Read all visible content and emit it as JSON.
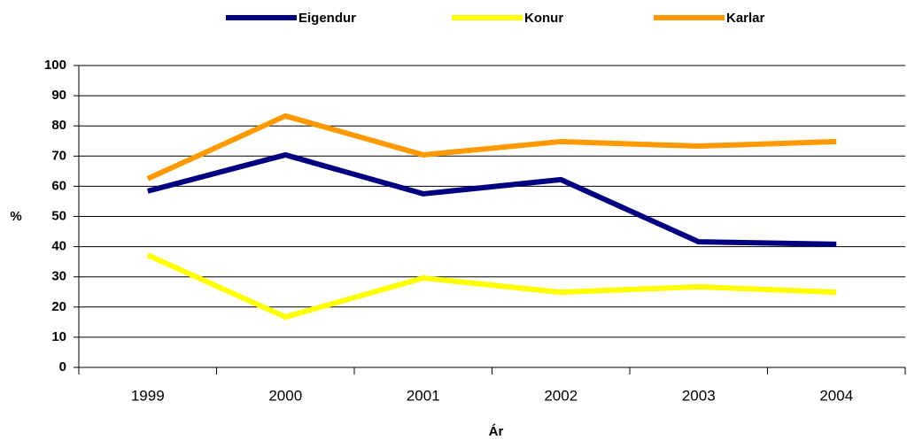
{
  "chart_data": {
    "type": "line",
    "categories": [
      "1999",
      "2000",
      "2001",
      "2002",
      "2003",
      "2004"
    ],
    "series": [
      {
        "name": "Eigendur",
        "color": "#000080",
        "values": [
          58.4,
          70.4,
          57.5,
          62.2,
          41.6,
          40.8
        ]
      },
      {
        "name": "Konur",
        "color": "#ffff00",
        "values": [
          37.2,
          16.7,
          29.6,
          24.9,
          26.7,
          24.9
        ]
      },
      {
        "name": "Karlar",
        "color": "#ff9900",
        "values": [
          62.5,
          83.3,
          70.4,
          74.8,
          73.3,
          74.8
        ]
      }
    ],
    "ylabel": "%",
    "xlabel": "Ár",
    "ylim": [
      0,
      100
    ],
    "yticks": [
      0,
      10,
      20,
      30,
      40,
      50,
      60,
      70,
      80,
      90,
      100
    ],
    "grid": true,
    "legend": "top"
  }
}
